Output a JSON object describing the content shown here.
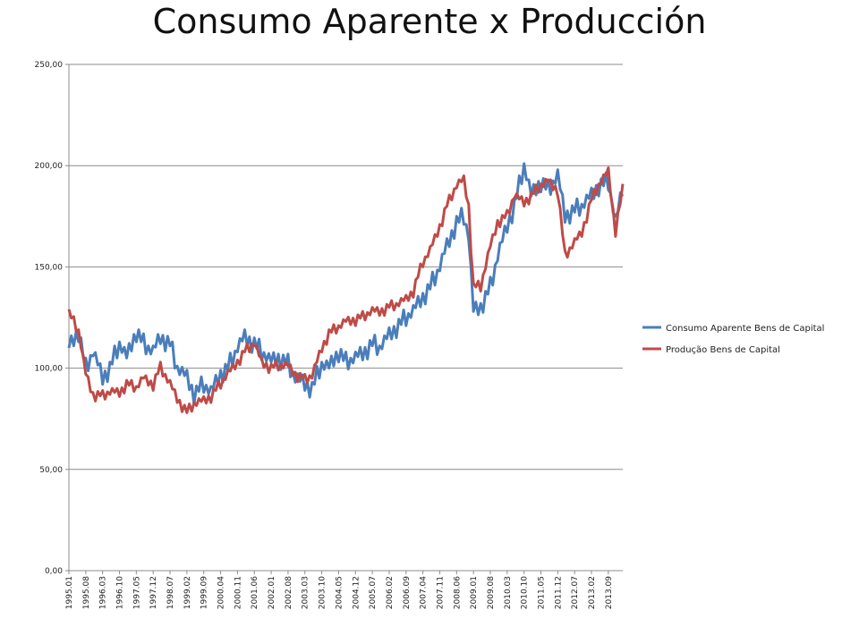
{
  "chart_data": {
    "type": "line",
    "title": "Consumo Aparente x Producción",
    "xlabel": "",
    "ylabel": "",
    "ylim": [
      0,
      250
    ],
    "ytick_labels": [
      "0,00",
      "50,00",
      "100,00",
      "150,00",
      "200,00",
      "250,00"
    ],
    "ytick_values": [
      0,
      50,
      100,
      150,
      200,
      250
    ],
    "x_tick_labels": [
      "1995.01",
      "1995.08",
      "1996.03",
      "1996.10",
      "1997.05",
      "1997.12",
      "1998.07",
      "1999.02",
      "1999.09",
      "2000.04",
      "2000.11",
      "2001.06",
      "2002.01",
      "2002.08",
      "2003.03",
      "2003.10",
      "2004.05",
      "2004.12",
      "2005.07",
      "2006.02",
      "2006.09",
      "2007.04",
      "2007.11",
      "2008.06",
      "2009.01",
      "2009.08",
      "2010.03",
      "2010.10",
      "2011.05",
      "2011.12",
      "2012.07",
      "2013.02",
      "2013.09"
    ],
    "x_start": "1995.01",
    "x_end": "2014.03",
    "grid": true,
    "legend_position": "right",
    "series": [
      {
        "name": "Consumo Aparente Bens de Capital",
        "color": "#4a7ebb",
        "x_anchors": [
          "1995.01",
          "1995.05",
          "1995.08",
          "1995.11",
          "1996.03",
          "1996.06",
          "1996.10",
          "1997.01",
          "1997.05",
          "1997.08",
          "1997.12",
          "1998.03",
          "1998.07",
          "1998.10",
          "1999.02",
          "1999.05",
          "1999.09",
          "1999.12",
          "2000.04",
          "2000.07",
          "2000.11",
          "2001.02",
          "2001.06",
          "2001.09",
          "2002.01",
          "2002.04",
          "2002.08",
          "2002.11",
          "2003.03",
          "2003.06",
          "2003.10",
          "2004.01",
          "2004.05",
          "2004.08",
          "2004.12",
          "2005.03",
          "2005.07",
          "2005.10",
          "2006.02",
          "2006.05",
          "2006.09",
          "2006.12",
          "2007.04",
          "2007.07",
          "2007.11",
          "2008.02",
          "2008.06",
          "2008.09",
          "2008.11",
          "2009.01",
          "2009.04",
          "2009.08",
          "2009.11",
          "2010.03",
          "2010.06",
          "2010.10",
          "2011.01",
          "2011.05",
          "2011.08",
          "2011.12",
          "2012.03",
          "2012.07",
          "2012.10",
          "2013.02",
          "2013.05",
          "2013.09",
          "2013.12",
          "2014.03"
        ],
        "y_anchors": [
          110,
          118,
          100,
          108,
          95,
          100,
          112,
          105,
          118,
          112,
          108,
          115,
          112,
          100,
          95,
          87,
          92,
          88,
          97,
          100,
          110,
          115,
          112,
          108,
          103,
          105,
          102,
          95,
          92,
          90,
          102,
          100,
          108,
          103,
          105,
          107,
          112,
          110,
          116,
          120,
          125,
          128,
          135,
          140,
          150,
          160,
          172,
          175,
          165,
          128,
          130,
          140,
          155,
          170,
          180,
          200,
          185,
          192,
          188,
          195,
          175,
          178,
          180,
          185,
          190,
          192,
          172,
          188
        ]
      },
      {
        "name": "Produção Bens de Capital",
        "color": "#be4b48",
        "x_anchors": [
          "1995.01",
          "1995.05",
          "1995.08",
          "1995.11",
          "1996.03",
          "1996.06",
          "1996.10",
          "1997.01",
          "1997.05",
          "1997.08",
          "1997.12",
          "1998.03",
          "1998.07",
          "1998.10",
          "1999.02",
          "1999.05",
          "1999.09",
          "1999.12",
          "2000.04",
          "2000.07",
          "2000.11",
          "2001.02",
          "2001.06",
          "2001.09",
          "2002.01",
          "2002.04",
          "2002.08",
          "2002.11",
          "2003.03",
          "2003.06",
          "2003.10",
          "2004.01",
          "2004.05",
          "2004.08",
          "2004.12",
          "2005.03",
          "2005.07",
          "2005.10",
          "2006.02",
          "2006.05",
          "2006.09",
          "2006.12",
          "2007.04",
          "2007.07",
          "2007.11",
          "2008.02",
          "2008.06",
          "2008.09",
          "2008.11",
          "2009.01",
          "2009.04",
          "2009.08",
          "2009.11",
          "2010.03",
          "2010.06",
          "2010.10",
          "2011.01",
          "2011.05",
          "2011.08",
          "2011.12",
          "2012.03",
          "2012.07",
          "2012.10",
          "2013.02",
          "2013.05",
          "2013.09",
          "2013.12",
          "2014.03"
        ],
        "y_anchors": [
          127,
          118,
          97,
          87,
          86,
          88,
          88,
          92,
          90,
          95,
          92,
          100,
          92,
          85,
          78,
          82,
          84,
          86,
          92,
          97,
          103,
          108,
          112,
          103,
          100,
          101,
          101,
          97,
          94,
          96,
          110,
          117,
          120,
          123,
          124,
          125,
          128,
          128,
          130,
          131,
          134,
          138,
          152,
          158,
          170,
          180,
          190,
          193,
          180,
          140,
          140,
          160,
          172,
          175,
          185,
          182,
          185,
          190,
          192,
          188,
          155,
          162,
          167,
          183,
          190,
          197,
          168,
          188
        ]
      }
    ]
  }
}
